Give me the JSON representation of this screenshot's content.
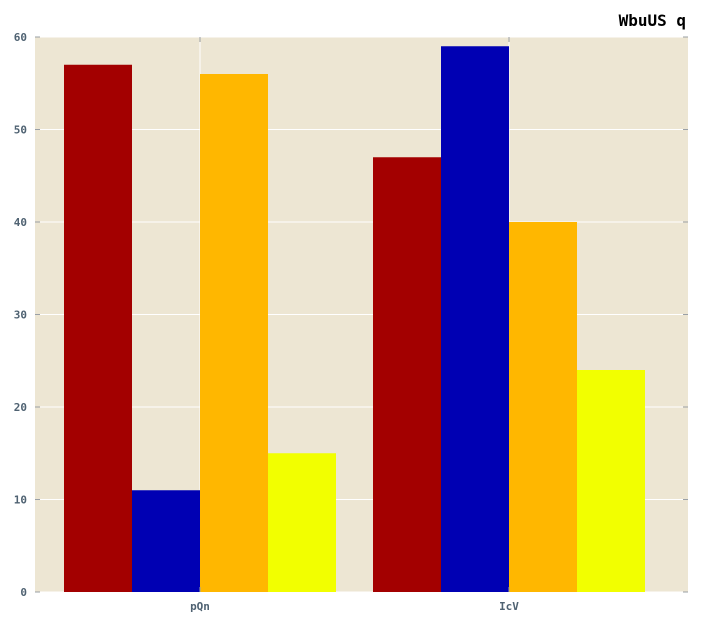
{
  "chart_data": {
    "type": "bar",
    "title": "WbuUS q",
    "xlabel": "",
    "ylabel": "",
    "categories": [
      "pQn",
      "IcV"
    ],
    "series": [
      {
        "values": [
          57,
          47
        ],
        "color": "#a30000"
      },
      {
        "values": [
          11,
          59
        ],
        "color": "#0000b3"
      },
      {
        "values": [
          56,
          40
        ],
        "color": "#ffb700"
      },
      {
        "values": [
          15,
          24
        ],
        "color": "#f2ff00"
      }
    ],
    "ylim": [
      0,
      60
    ],
    "yticks": [
      0,
      10,
      20,
      30,
      40,
      50,
      60
    ],
    "grid": true,
    "legend": "none",
    "colors": {
      "plot_background": "#ede6d3",
      "grid": "#ffffff",
      "tick_label": "#4f6272"
    }
  }
}
